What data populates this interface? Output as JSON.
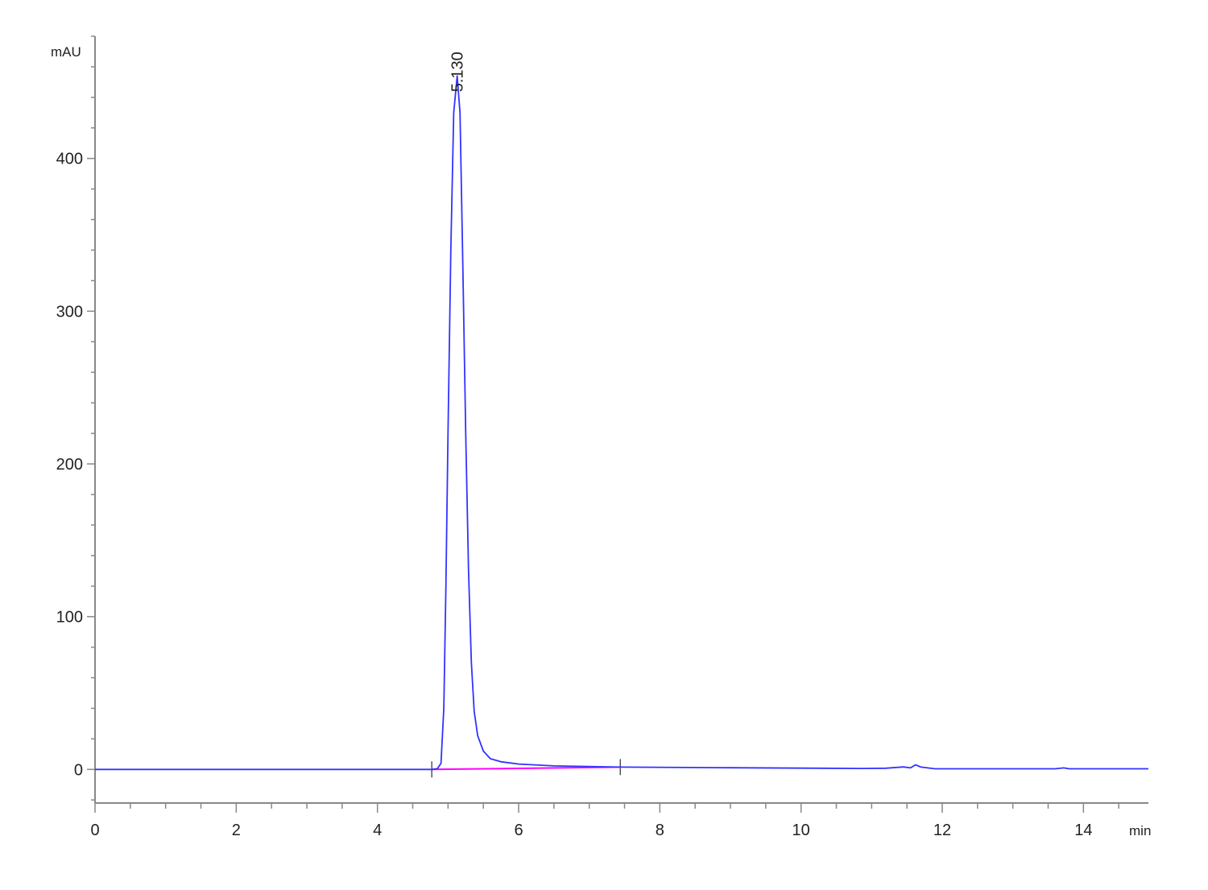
{
  "chart_data": {
    "type": "line",
    "title": "",
    "xlabel": "min",
    "ylabel": "mAU",
    "xlim": [
      0,
      14.92
    ],
    "ylim": [
      -22,
      480
    ],
    "x_ticks": [
      0,
      2,
      4,
      6,
      8,
      10,
      12,
      14
    ],
    "x_minor_step": 0.5,
    "y_ticks": [
      0,
      100,
      200,
      300,
      400
    ],
    "y_minor_step": 20,
    "grid": false,
    "colors": {
      "signal": "#3333ff",
      "baseline": "#ff00ff",
      "axis": "#888888"
    },
    "series": [
      {
        "values": [
          [
            0,
            0
          ],
          [
            4.77,
            0
          ],
          [
            4.85,
            0.5
          ],
          [
            4.9,
            4
          ],
          [
            4.94,
            40
          ],
          [
            4.97,
            120
          ],
          [
            5.0,
            220
          ],
          [
            5.04,
            340
          ],
          [
            5.08,
            430
          ],
          [
            5.13,
            454
          ],
          [
            5.17,
            430
          ],
          [
            5.21,
            330
          ],
          [
            5.25,
            220
          ],
          [
            5.29,
            130
          ],
          [
            5.33,
            70
          ],
          [
            5.37,
            38
          ],
          [
            5.42,
            22
          ],
          [
            5.5,
            12
          ],
          [
            5.6,
            7
          ],
          [
            5.75,
            5
          ],
          [
            6.0,
            3.5
          ],
          [
            6.5,
            2.3
          ],
          [
            7.44,
            1.5
          ],
          [
            9,
            1.1
          ],
          [
            10.86,
            0.6
          ],
          [
            11.2,
            0.8
          ],
          [
            11.45,
            1.6
          ],
          [
            11.55,
            1.0
          ],
          [
            11.62,
            3
          ],
          [
            11.7,
            1.5
          ],
          [
            11.9,
            0.4
          ],
          [
            13.6,
            0.4
          ],
          [
            13.72,
            1.0
          ],
          [
            13.8,
            0.4
          ],
          [
            14.92,
            0.4
          ]
        ]
      }
    ],
    "peaks": [
      {
        "time": 5.13,
        "label": "5.130",
        "height": 454
      }
    ],
    "integration_baseline": [
      [
        4.77,
        0
      ],
      [
        7.44,
        1.5
      ]
    ]
  }
}
